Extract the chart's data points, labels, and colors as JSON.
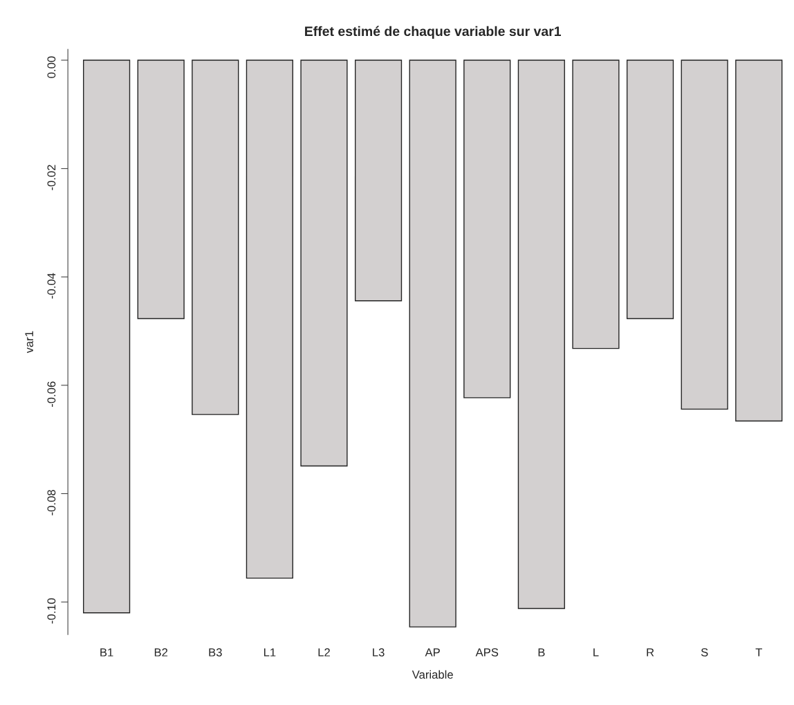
{
  "chart_data": {
    "type": "bar",
    "title": "Effet estimé de chaque variable sur var1",
    "xlabel": "Variable",
    "ylabel": "var1",
    "categories": [
      "B1",
      "B2",
      "B3",
      "L1",
      "L2",
      "L3",
      "AP",
      "APS",
      "B",
      "L",
      "R",
      "S",
      "T"
    ],
    "values": [
      -0.102,
      -0.0477,
      -0.0654,
      -0.0956,
      -0.0749,
      -0.0444,
      -0.1046,
      -0.0623,
      -0.1012,
      -0.0532,
      -0.0477,
      -0.0644,
      -0.0666
    ],
    "color": "#d3d0d0",
    "ylim": [
      -0.106,
      0.002
    ],
    "yticks": [
      {
        "value": 0,
        "label": "0.00"
      },
      {
        "value": -0.02,
        "label": "-0.02"
      },
      {
        "value": -0.04,
        "label": "-0.04"
      },
      {
        "value": -0.06,
        "label": "-0.06"
      },
      {
        "value": -0.08,
        "label": "-0.08"
      },
      {
        "value": -0.1,
        "label": "-0.10"
      }
    ],
    "grid": false
  }
}
